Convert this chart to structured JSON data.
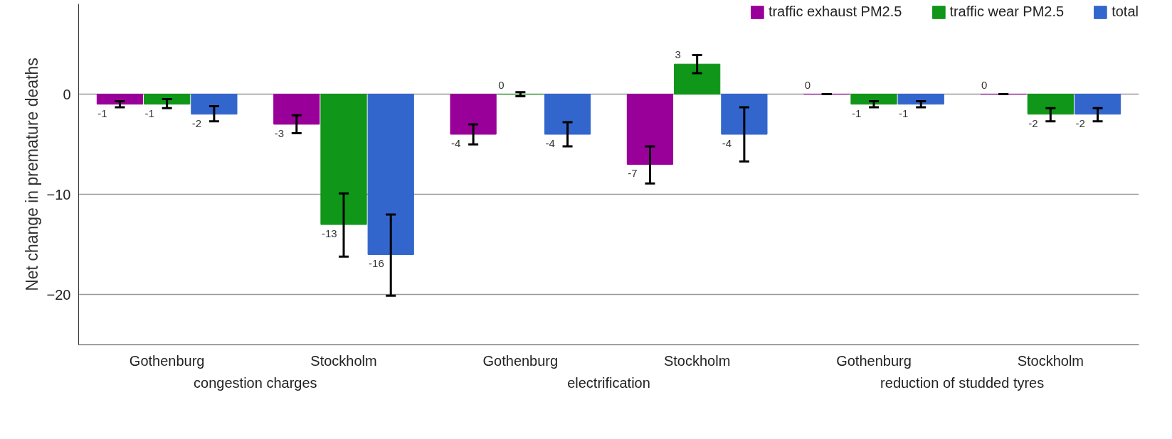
{
  "chart_data": {
    "type": "bar",
    "ylabel": "Net change in premature deaths",
    "categories": [
      "Gothenburg",
      "Stockholm",
      "Gothenburg",
      "Stockholm",
      "Gothenburg",
      "Stockholm"
    ],
    "annotations": [
      "congestion charges",
      "electrification",
      "reduction of studded tyres"
    ],
    "series": [
      {
        "name": "traffic exhaust PM2.5",
        "color": "#990099",
        "values": [
          -1,
          -3,
          -4,
          -7,
          0,
          0
        ],
        "errors": [
          [
            -1.3,
            -0.7
          ],
          [
            -3.9,
            -2.1
          ],
          [
            -5.0,
            -3.0
          ],
          [
            -8.9,
            -5.2
          ],
          [
            0,
            0
          ],
          [
            0,
            0
          ]
        ]
      },
      {
        "name": "traffic wear PM2.5",
        "color": "#109618",
        "values": [
          -1,
          -13,
          0,
          3,
          -1,
          -2
        ],
        "errors": [
          [
            -1.4,
            -0.5
          ],
          [
            -16.2,
            -9.9
          ],
          [
            -0.2,
            0.2
          ],
          [
            2.1,
            3.9
          ],
          [
            -1.3,
            -0.7
          ],
          [
            -2.7,
            -1.4
          ]
        ]
      },
      {
        "name": "total",
        "color": "#3366cc",
        "values": [
          -2,
          -16,
          -4,
          -4,
          -1,
          -2
        ],
        "errors": [
          [
            -2.7,
            -1.2
          ],
          [
            -20.1,
            -12.0
          ],
          [
            -5.2,
            -2.8
          ],
          [
            -6.7,
            -1.3
          ],
          [
            -1.3,
            -0.7
          ],
          [
            -2.7,
            -1.4
          ]
        ]
      }
    ],
    "ylim": [
      -25,
      9
    ],
    "yticks": [
      {
        "value": -20,
        "label": "−20"
      },
      {
        "value": -10,
        "label": "−10"
      },
      0
    ],
    "grid": "y",
    "legend": "top right",
    "data_labels": true
  }
}
